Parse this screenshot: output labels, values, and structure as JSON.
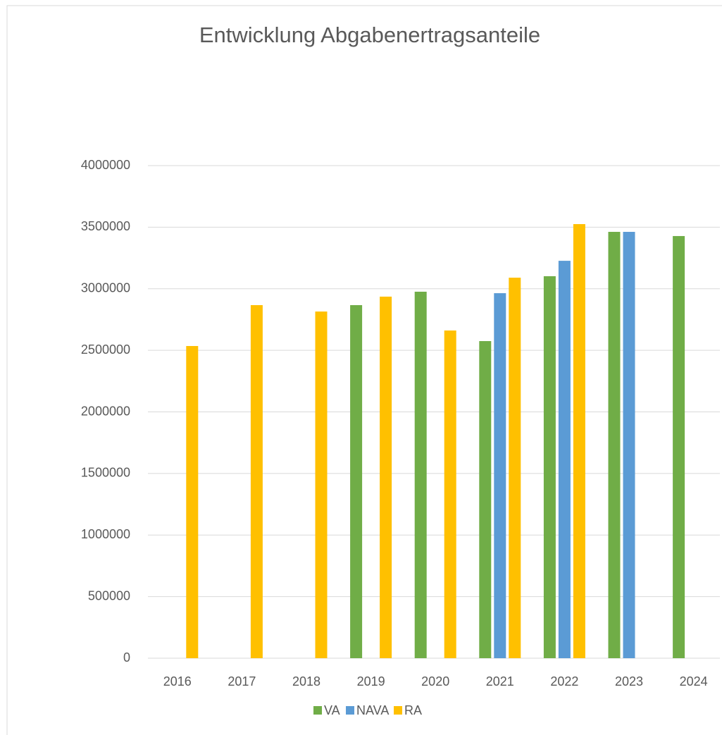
{
  "chart_data": {
    "type": "bar",
    "title": "Entwicklung Abgabenertragsanteile",
    "categories": [
      "2016",
      "2017",
      "2018",
      "2019",
      "2020",
      "2021",
      "2022",
      "2023",
      "2024"
    ],
    "series": [
      {
        "name": "VA",
        "color": "#70ad47",
        "values": [
          null,
          null,
          null,
          2867000,
          2976000,
          2575000,
          3102000,
          3462000,
          3428000
        ]
      },
      {
        "name": "NAVA",
        "color": "#5b9bd5",
        "values": [
          null,
          null,
          null,
          null,
          null,
          2964000,
          3227000,
          3462000,
          null
        ]
      },
      {
        "name": "RA",
        "color": "#ffc000",
        "values": [
          2535000,
          2867000,
          2815000,
          2936000,
          2661000,
          3090000,
          3525000,
          null,
          null
        ]
      }
    ],
    "ylim": [
      0,
      4000000
    ],
    "yticks": [
      0,
      500000,
      1000000,
      1500000,
      2000000,
      2500000,
      3000000,
      3500000,
      4000000
    ],
    "grid": true
  }
}
